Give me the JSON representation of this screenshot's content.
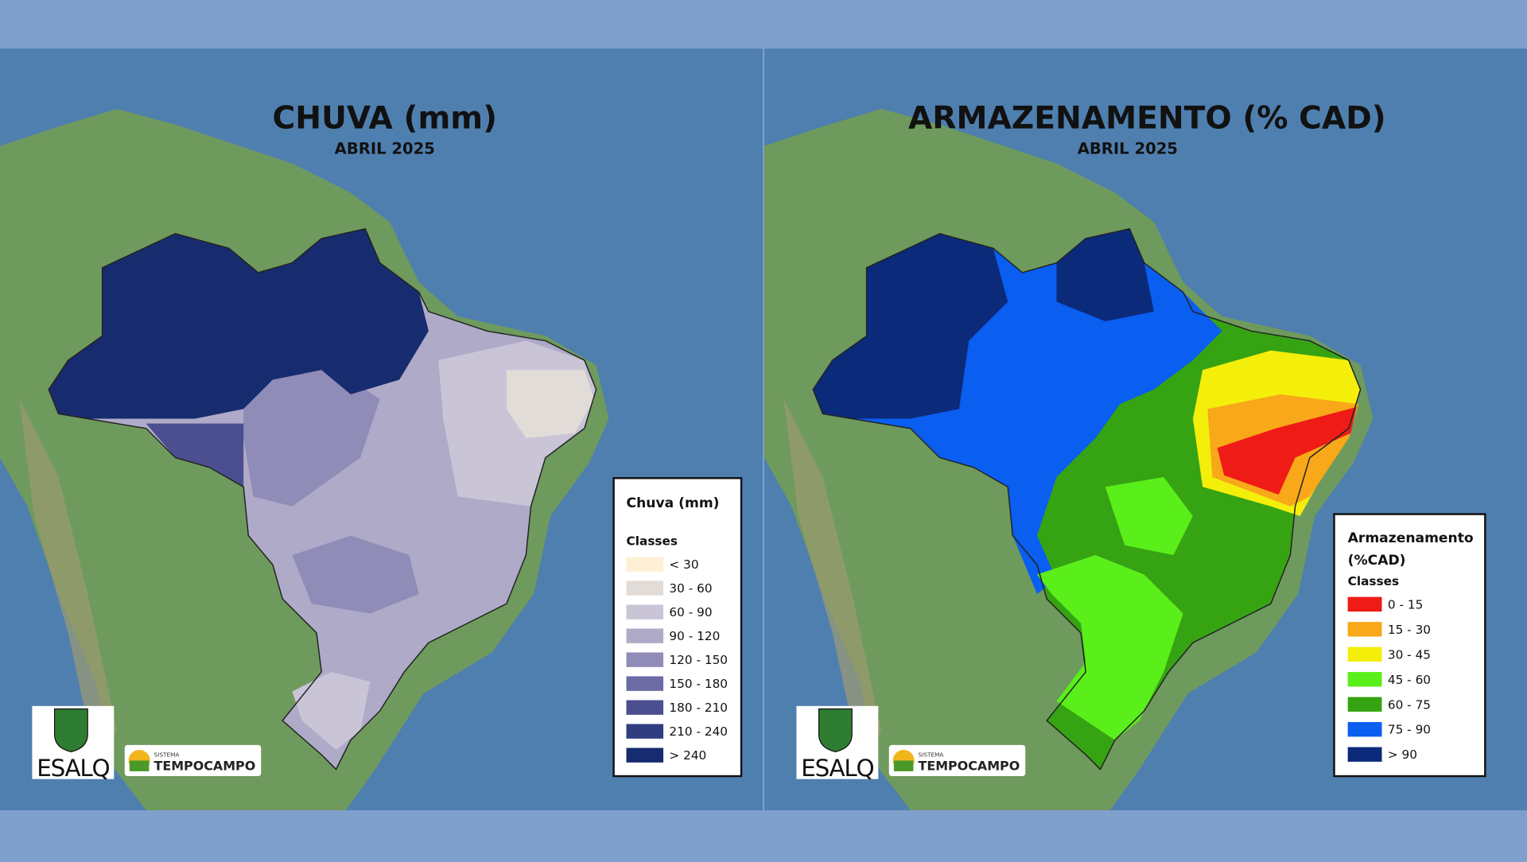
{
  "panels": [
    {
      "title": "CHUVA (mm)",
      "subtitle": "ABRIL 2025",
      "legend": {
        "title_lines": [
          "Chuva (mm)"
        ],
        "subtitle": "Classes",
        "classes": [
          {
            "label": "< 30",
            "color": "#fdf0d5"
          },
          {
            "label": "30 - 60",
            "color": "#e2dcd8"
          },
          {
            "label": "60 - 90",
            "color": "#c9c5d6"
          },
          {
            "label": "90 - 120",
            "color": "#aeaac8"
          },
          {
            "label": "120 - 150",
            "color": "#8f8cb8"
          },
          {
            "label": "150 - 180",
            "color": "#6c6ba4"
          },
          {
            "label": "180 - 210",
            "color": "#4b4e8f"
          },
          {
            "label": "210 - 240",
            "color": "#2f3d80"
          },
          {
            "label": "> 240",
            "color": "#172c6e"
          }
        ]
      }
    },
    {
      "title": "ARMAZENAMENTO (% CAD)",
      "subtitle": "ABRIL 2025",
      "legend": {
        "title_lines": [
          "Armazenamento",
          "(%CAD)"
        ],
        "subtitle": "Classes",
        "classes": [
          {
            "label": "0 - 15",
            "color": "#ee1b16"
          },
          {
            "label": "15 - 30",
            "color": "#f8a818"
          },
          {
            "label": "30 - 45",
            "color": "#f4ee0b"
          },
          {
            "label": "45 - 60",
            "color": "#5aee1a"
          },
          {
            "label": "60 - 75",
            "color": "#36a313"
          },
          {
            "label": "75 - 90",
            "color": "#0a5ef0"
          },
          {
            "label": "> 90",
            "color": "#0b2a7a"
          }
        ]
      }
    }
  ],
  "logos": {
    "esalq": "ESALQ",
    "sistema": "SISTEMA",
    "tempocampo": "TEMPOCAMPO"
  }
}
